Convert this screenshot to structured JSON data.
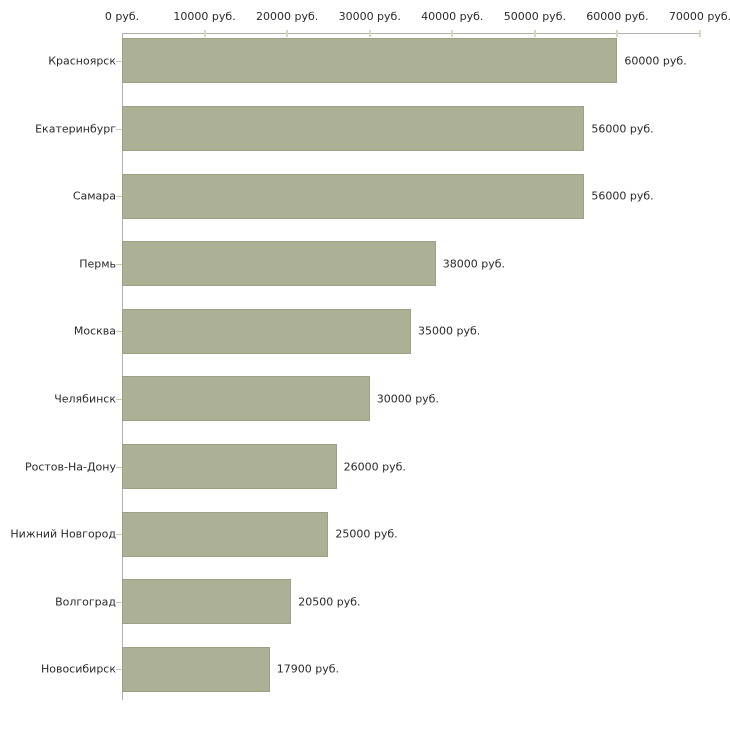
{
  "chart_data": {
    "type": "bar",
    "orientation": "horizontal",
    "title": "",
    "xlabel": "",
    "ylabel": "",
    "unit": "руб.",
    "xlim": [
      0,
      70000
    ],
    "grid": "off",
    "legend": "none",
    "categories": [
      "Красноярск",
      "Екатеринбург",
      "Самара",
      "Пермь",
      "Москва",
      "Челябинск",
      "Ростов-На-Дону",
      "Нижний Новгород",
      "Волгоград",
      "Новосибирск"
    ],
    "values": [
      60000,
      56000,
      56000,
      38000,
      35000,
      30000,
      26000,
      25000,
      20500,
      17900
    ],
    "value_labels": [
      "60000 руб.",
      "56000 руб.",
      "56000 руб.",
      "38000 руб.",
      "35000 руб.",
      "30000 руб.",
      "26000 руб.",
      "25000 руб.",
      "20500 руб.",
      "17900 руб."
    ],
    "x_tick_values": [
      0,
      10000,
      20000,
      30000,
      40000,
      50000,
      60000,
      70000
    ],
    "x_tick_labels": [
      "0 руб.",
      "10000 руб.",
      "20000 руб.",
      "30000 руб.",
      "40000 руб.",
      "50000 руб.",
      "60000 руб.",
      "70000 руб."
    ],
    "colors": {
      "background": "#ffffff",
      "bar_fill": "#acb196",
      "bar_border": "#9ba186",
      "axis_line": "#b0b0b0",
      "axis_tick": "#d5d8b9",
      "category_dash": "#c6cbac",
      "text": "#2a2a2a"
    }
  }
}
